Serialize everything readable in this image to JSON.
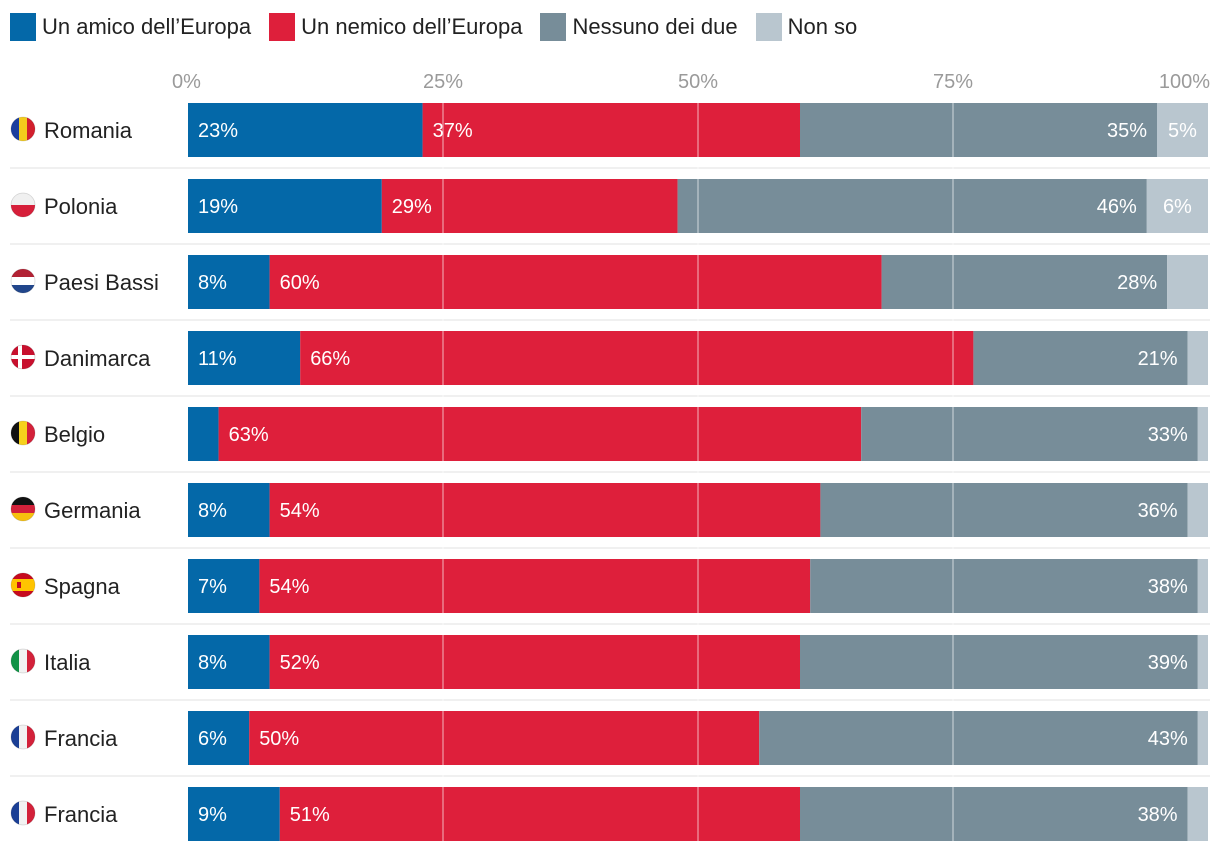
{
  "legend": {
    "items": [
      {
        "label": "Un amico dell’Europa",
        "color": "#0468a8"
      },
      {
        "label": "Un nemico dell’Europa",
        "color": "#de1f3b"
      },
      {
        "label": "Nessuno dei due",
        "color": "#778d99"
      },
      {
        "label": "Non so",
        "color": "#b9c6cf"
      }
    ]
  },
  "chart_data": {
    "type": "bar",
    "orientation": "horizontal",
    "stacked": true,
    "xlim": [
      0,
      100
    ],
    "x_ticks": [
      "0%",
      "25%",
      "50%",
      "75%",
      "100%"
    ],
    "legend_position": "top-left",
    "categories": [
      "Romania",
      "Polonia",
      "Paesi Bassi",
      "Danimarca",
      "Belgio",
      "Germania",
      "Spagna",
      "Italia",
      "Francia",
      "Francia"
    ],
    "series": [
      {
        "name": "Un amico dell’Europa",
        "color": "#0468a8",
        "values": [
          23,
          19,
          8,
          11,
          3,
          8,
          7,
          8,
          6,
          9
        ],
        "labels": [
          "23%",
          "19%",
          "8%",
          "11%",
          "",
          "8%",
          "7%",
          "8%",
          "6%",
          "9%"
        ]
      },
      {
        "name": "Un nemico dell’Europa",
        "color": "#de1f3b",
        "values": [
          37,
          29,
          60,
          66,
          63,
          54,
          54,
          52,
          50,
          51
        ],
        "labels": [
          "37%",
          "29%",
          "60%",
          "66%",
          "63%",
          "54%",
          "54%",
          "52%",
          "50%",
          "51%"
        ]
      },
      {
        "name": "Nessuno dei due",
        "color": "#778d99",
        "values": [
          35,
          46,
          28,
          21,
          33,
          36,
          38,
          39,
          43,
          38
        ],
        "labels": [
          "35%",
          "46%",
          "28%",
          "21%",
          "33%",
          "36%",
          "38%",
          "39%",
          "43%",
          "38%"
        ]
      },
      {
        "name": "Non so",
        "color": "#b9c6cf",
        "values": [
          5,
          6,
          4,
          2,
          1,
          2,
          1,
          1,
          1,
          2
        ],
        "labels": [
          "5%",
          "6%",
          "",
          "",
          "",
          "",
          "",
          "",
          "",
          ""
        ]
      }
    ],
    "flags": [
      "romania-flag-icon",
      "poland-flag-icon",
      "netherlands-flag-icon",
      "denmark-flag-icon",
      "belgium-flag-icon",
      "germany-flag-icon",
      "spain-flag-icon",
      "italy-flag-icon",
      "france-flag-icon",
      "france-flag-icon"
    ]
  }
}
